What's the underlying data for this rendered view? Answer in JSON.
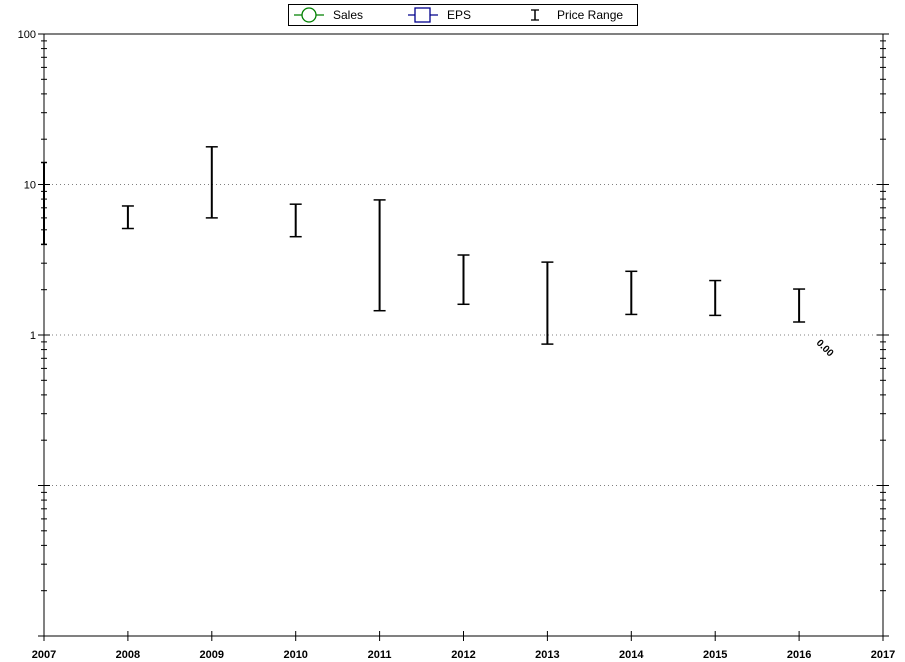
{
  "chart_data": {
    "type": "errorbar",
    "title": "",
    "xlabel": "",
    "ylabel": "",
    "y_scale": "log",
    "ylim": [
      0.01,
      100
    ],
    "xlim": [
      2007,
      2017
    ],
    "x_ticks": [
      "2007",
      "2008",
      "2009",
      "2010",
      "2011",
      "2012",
      "2013",
      "2014",
      "2015",
      "2016",
      "2017"
    ],
    "y_tick_labels": [
      {
        "value": 100,
        "label": "100"
      },
      {
        "value": 10,
        "label": "10"
      },
      {
        "value": 1,
        "label": "1"
      }
    ],
    "grid": "dotted horizontal at each decade",
    "legend": {
      "placement": "top-center",
      "items": [
        {
          "label": "Sales",
          "marker": "circle",
          "color": "#008000"
        },
        {
          "label": "EPS",
          "marker": "square",
          "color": "#00008b"
        },
        {
          "label": "Price Range",
          "marker": "errorbar",
          "color": "#000000"
        }
      ]
    },
    "series": [
      {
        "name": "Price Range",
        "ranges": [
          {
            "x": 2007,
            "low": 4.0,
            "high": 14.0
          },
          {
            "x": 2008,
            "low": 5.1,
            "high": 7.2
          },
          {
            "x": 2009,
            "low": 6.0,
            "high": 17.8
          },
          {
            "x": 2010,
            "low": 4.5,
            "high": 7.4
          },
          {
            "x": 2011,
            "low": 1.45,
            "high": 7.9
          },
          {
            "x": 2012,
            "low": 1.6,
            "high": 3.4
          },
          {
            "x": 2013,
            "low": 0.87,
            "high": 3.05
          },
          {
            "x": 2014,
            "low": 1.37,
            "high": 2.65
          },
          {
            "x": 2015,
            "low": 1.35,
            "high": 2.3
          },
          {
            "x": 2016,
            "low": 1.22,
            "high": 2.02
          }
        ]
      },
      {
        "name": "Sales",
        "values": []
      },
      {
        "name": "EPS",
        "values": []
      }
    ],
    "annotations": [
      {
        "x": 2016.2,
        "y": 0.88,
        "text": "0.00",
        "rotation": 45
      }
    ]
  }
}
